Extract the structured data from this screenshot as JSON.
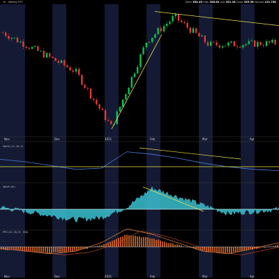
{
  "header": {
    "symbol_label": "1h · Weekly ETF",
    "open_label": "Open",
    "open_value": "354.40",
    "high_label": "High",
    "high_value": "356.82",
    "low_label": "Low",
    "low_value": "351.18",
    "close_label": "Close",
    "close_value": "355.56",
    "volume_label": "Volume",
    "volume_value": "122.75K"
  },
  "panels": {
    "macd_label": "MACD (12, 26, 9)",
    "osc_label": "WAVE (40)",
    "ppo_label": "PPO (12, 26, 9) · SMA"
  },
  "colors": {
    "bull": "#00c853",
    "bear": "#e53935",
    "trendline": "#f2e34b",
    "macd_line": "#4a7fe0",
    "oscillator_fill": "#3bbfcf",
    "histogram_bar": "#e36c2b",
    "ppo_line": "#ef8a3a",
    "signal_line": "#b84a2a",
    "background": "#000000",
    "session_shade": "#141a33"
  },
  "chart_data": [
    {
      "type": "candlestick",
      "title": "Price",
      "x": [
        "Nov",
        "Dec",
        "2021",
        "Feb",
        "Mar",
        "Apr"
      ],
      "approx_close_path": [
        {
          "x": "early Nov",
          "y": 372
        },
        {
          "x": "mid Dec",
          "y": 350
        },
        {
          "x": "2021",
          "y": 318
        },
        {
          "x": "late Jan",
          "y": 367
        },
        {
          "x": "Feb",
          "y": 381
        },
        {
          "x": "Mar",
          "y": 365
        },
        {
          "x": "Apr",
          "y": 366
        }
      ],
      "ylim": [
        315,
        385
      ],
      "trendlines": [
        "rising support from 2021 low",
        "falling resistance from Feb high"
      ]
    },
    {
      "type": "line",
      "title": "MACD",
      "series": [
        {
          "values": [
            0.2,
            0.0,
            -0.3,
            -0.6,
            -0.5,
            0.8,
            0.6,
            0.3,
            -0.1,
            -0.4,
            -0.6,
            -0.7
          ]
        }
      ],
      "reference_level": 0
    },
    {
      "type": "area",
      "title": "Oscillator",
      "series": [
        {
          "values": [
            0.1,
            -0.1,
            -0.3,
            -0.5,
            -0.4,
            0.1,
            1.0,
            0.6,
            0.2,
            -0.2,
            -0.1,
            0.0
          ]
        }
      ]
    },
    {
      "type": "bar",
      "title": "Histogram",
      "series": [
        {
          "values": [
            -0.1,
            -0.2,
            -0.3,
            -0.2,
            0.1,
            0.6,
            0.4,
            0.1,
            -0.2,
            -0.3,
            -0.1,
            0.1
          ]
        }
      ]
    }
  ],
  "axis_ticks": {
    "top_axis": [
      "Nov",
      "Dec",
      "2021",
      "Feb",
      "Mar",
      "Apr"
    ],
    "bottom_axis": [
      "Nov",
      "Dec",
      "2021",
      "Feb",
      "Mar",
      "Apr"
    ]
  }
}
